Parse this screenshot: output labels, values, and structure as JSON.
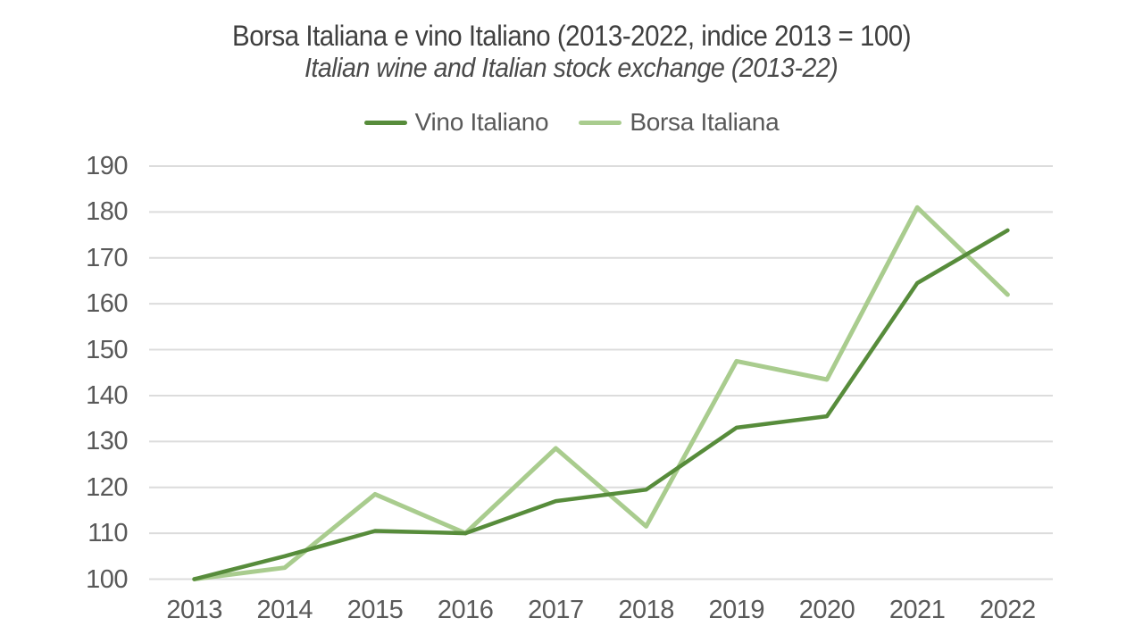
{
  "chart_data": {
    "type": "line",
    "title": "Borsa Italiana e vino Italiano (2013-2022, indice 2013 = 100)",
    "subtitle": "Italian wine and Italian stock exchange (2013-22)",
    "categories": [
      "2013",
      "2014",
      "2015",
      "2016",
      "2017",
      "2018",
      "2019",
      "2020",
      "2021",
      "2022"
    ],
    "series": [
      {
        "name": "Vino Italiano",
        "color": "#578c3b",
        "stroke_width": 4.5,
        "values": [
          100,
          105,
          110.5,
          110,
          117,
          119.5,
          133,
          135.5,
          164.5,
          176
        ]
      },
      {
        "name": "Borsa Italiana",
        "color": "#a9cc8e",
        "stroke_width": 5,
        "values": [
          100,
          102.5,
          118.5,
          110,
          128.5,
          111.5,
          147.5,
          143.5,
          181,
          162
        ]
      }
    ],
    "xlabel": "",
    "ylabel": "",
    "ylim": [
      100,
      190
    ],
    "ytick_step": 10,
    "yticks": [
      100,
      110,
      120,
      130,
      140,
      150,
      160,
      170,
      180,
      190
    ],
    "grid": true,
    "gridline_color": "#dcdcdc",
    "tick_text_color": "#595959",
    "title_text_color": "#3f3f3f",
    "legend_position": "top-center",
    "markers": false
  }
}
